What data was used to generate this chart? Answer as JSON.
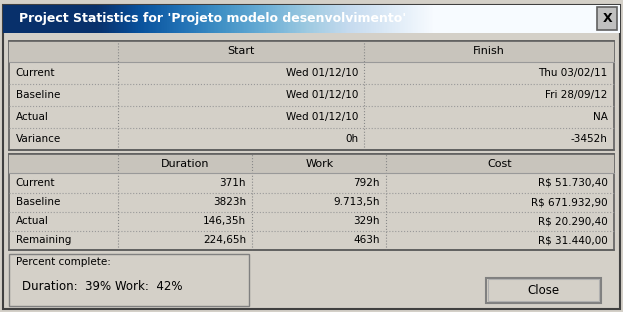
{
  "title": "Project Statistics for 'Projeto modelo desenvolvimento'",
  "title_bg_start": "#5a8fc0",
  "title_bg_end": "#3a6fa0",
  "bg_color": "#d4d0c8",
  "table_bg": "#d4d0c8",
  "header_bg": "#c8c4bc",
  "border_color": "#808080",
  "dot_border": "#999999",
  "text_color": "#000000",
  "title_text_color": "#ffffff",
  "section1_headers": [
    "",
    "Start",
    "Finish"
  ],
  "section1_rows": [
    [
      "Current",
      "Wed 01/12/10",
      "Thu 03/02/11"
    ],
    [
      "Baseline",
      "Wed 01/12/10",
      "Fri 28/09/12"
    ],
    [
      "Actual",
      "Wed 01/12/10",
      "NA"
    ],
    [
      "Variance",
      "0h",
      "-3452h"
    ]
  ],
  "section2_headers": [
    "",
    "Duration",
    "Work",
    "Cost"
  ],
  "section2_rows": [
    [
      "Current",
      "371h",
      "792h",
      "R$ 51.730,40"
    ],
    [
      "Baseline",
      "3823h",
      "9.713,5h",
      "R$ 671.932,90"
    ],
    [
      "Actual",
      "146,35h",
      "329h",
      "R$ 20.290,40"
    ],
    [
      "Remaining",
      "224,65h",
      "463h",
      "R$ 31.440,00"
    ]
  ],
  "percent_label": "Percent complete:",
  "duration_pct": "Duration:  39%",
  "work_pct": "Work:  42%",
  "close_btn": "Close",
  "fig_width": 6.23,
  "fig_height": 3.12
}
